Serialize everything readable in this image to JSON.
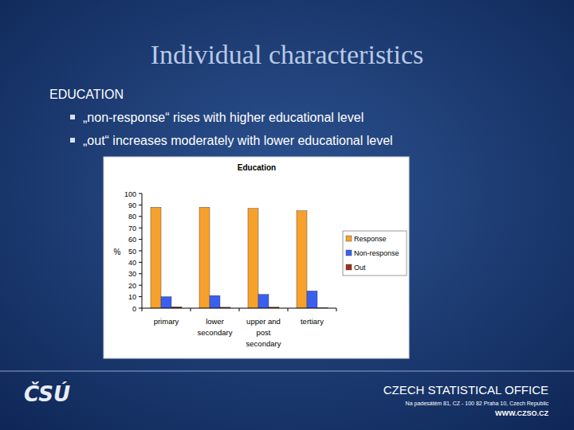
{
  "slide": {
    "title": "Individual characteristics",
    "heading": "EDUCATION",
    "bullets": [
      "„non-response“ rises with higher educational level",
      "„out“ increases moderately with lower educational level"
    ],
    "logo": "ČSÚ",
    "footer": {
      "office": "CZECH STATISTICAL OFFICE",
      "address": "Na padesátém 81, CZ - 100 82 Praha 10, Czech Republic",
      "web": "WWW.CZSO.CZ"
    }
  },
  "chart_data": {
    "type": "bar",
    "title": "Education",
    "y_label": "%",
    "categories": [
      "primary",
      "lower secondary",
      "upper and post secondary",
      "tertiary"
    ],
    "series": [
      {
        "name": "Response",
        "color": "#f7a12c",
        "values": [
          88,
          88,
          87,
          85
        ]
      },
      {
        "name": "Non-response",
        "color": "#3a5ff0",
        "values": [
          10,
          11,
          12,
          15
        ]
      },
      {
        "name": "Out",
        "color": "#a0301a",
        "values": [
          1.2,
          0.8,
          0.9,
          0.3
        ]
      }
    ],
    "ylim": [
      0,
      100
    ],
    "yticks": [
      0,
      10,
      20,
      30,
      40,
      50,
      60,
      70,
      80,
      90,
      100
    ],
    "grid": false,
    "legend": "right"
  }
}
